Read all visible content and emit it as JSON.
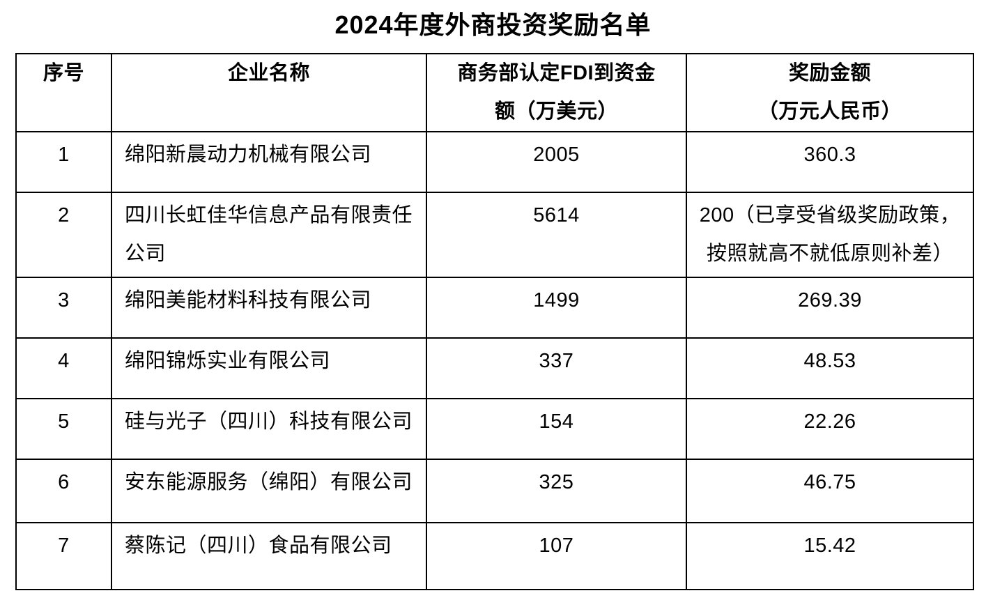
{
  "page": {
    "title": "2024年度外商投资奖励名单"
  },
  "table": {
    "headers": [
      "序号",
      "企业名称",
      "商务部认定FDI到资金\n额（万美元）",
      "奖励金额\n（万元人民币）"
    ],
    "rows": [
      {
        "num": "1",
        "name": "绵阳新晨动力机械有限公司",
        "fdi": "2005",
        "reward": "360.3"
      },
      {
        "num": "2",
        "name": "四川长虹佳华信息产品有限责任公司",
        "fdi": "5614",
        "reward": "200（已享受省级奖励政策，\n按照就高不就低原则补差）"
      },
      {
        "num": "3",
        "name": "绵阳美能材料科技有限公司",
        "fdi": "1499",
        "reward": "269.39"
      },
      {
        "num": "4",
        "name": "绵阳锦烁实业有限公司",
        "fdi": "337",
        "reward": "48.53"
      },
      {
        "num": "5",
        "name": "硅与光子（四川）科技有限公司",
        "fdi": "154",
        "reward": "22.26"
      },
      {
        "num": "6",
        "name": "安东能源服务（绵阳）有限公司",
        "fdi": "325",
        "reward": "46.75"
      },
      {
        "num": "7",
        "name": "蔡陈记（四川）食品有限公司",
        "fdi": "107",
        "reward": "15.42"
      }
    ]
  },
  "colors": {
    "text": "#000000",
    "border": "#000000",
    "background": "#ffffff"
  }
}
